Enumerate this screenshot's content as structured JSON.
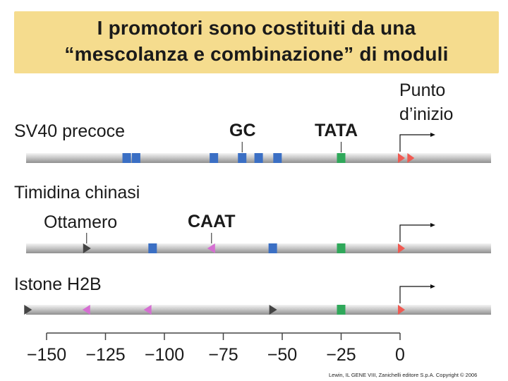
{
  "title": {
    "line1": "I promotori sono costituiti da una",
    "line2": "“mescolanza e combinazione” di moduli"
  },
  "start_site_label": {
    "line1": "Punto",
    "line2": "d’inizio"
  },
  "promoters": [
    {
      "name": "SV40 precoce",
      "module_labels": [
        {
          "text": "GC",
          "bold": true
        },
        {
          "text": "TATA",
          "bold": true
        }
      ],
      "elements": [
        {
          "type": "GC",
          "position": -116
        },
        {
          "type": "GC",
          "position": -112
        },
        {
          "type": "GC",
          "position": -79
        },
        {
          "type": "GC",
          "position": -67
        },
        {
          "type": "GC",
          "position": -60
        },
        {
          "type": "GC",
          "position": -52
        },
        {
          "type": "TATA",
          "position": -25
        },
        {
          "type": "start",
          "position": 0
        },
        {
          "type": "start",
          "position": 4
        }
      ]
    },
    {
      "name": "Timidina chinasi",
      "module_labels": [
        {
          "text": "Ottamero",
          "bold": false
        },
        {
          "text": "CAAT",
          "bold": true
        }
      ],
      "elements": [
        {
          "type": "octamer",
          "position": -133
        },
        {
          "type": "GC",
          "position": -105
        },
        {
          "type": "CAAT",
          "position": -80
        },
        {
          "type": "GC",
          "position": -54
        },
        {
          "type": "TATA",
          "position": -25
        },
        {
          "type": "start",
          "position": 0
        }
      ]
    },
    {
      "name": "Istone H2B",
      "module_labels": [],
      "elements": [
        {
          "type": "octamer",
          "position": -158
        },
        {
          "type": "CAAT",
          "position": -133
        },
        {
          "type": "CAAT",
          "position": -107
        },
        {
          "type": "octamer",
          "position": -54
        },
        {
          "type": "TATA",
          "position": -25
        },
        {
          "type": "start",
          "position": 0
        }
      ]
    }
  ],
  "axis": {
    "ticks": [
      "−150",
      "−125",
      "−100",
      "−75",
      "−50",
      "−25",
      "0"
    ],
    "tick_values": [
      -150,
      -125,
      -100,
      -75,
      -50,
      -25,
      0
    ]
  },
  "colors": {
    "title_bg": "#f5dc8e",
    "GC": "#3b6fc4",
    "TATA": "#2fa85a",
    "CAAT": "#d56fd2",
    "octamer": "#444444",
    "start": "#f05a52"
  },
  "credit": "Lewin, IL GENE VIII,  Zanichelli editore S.p.A.  Copyright © 2006"
}
